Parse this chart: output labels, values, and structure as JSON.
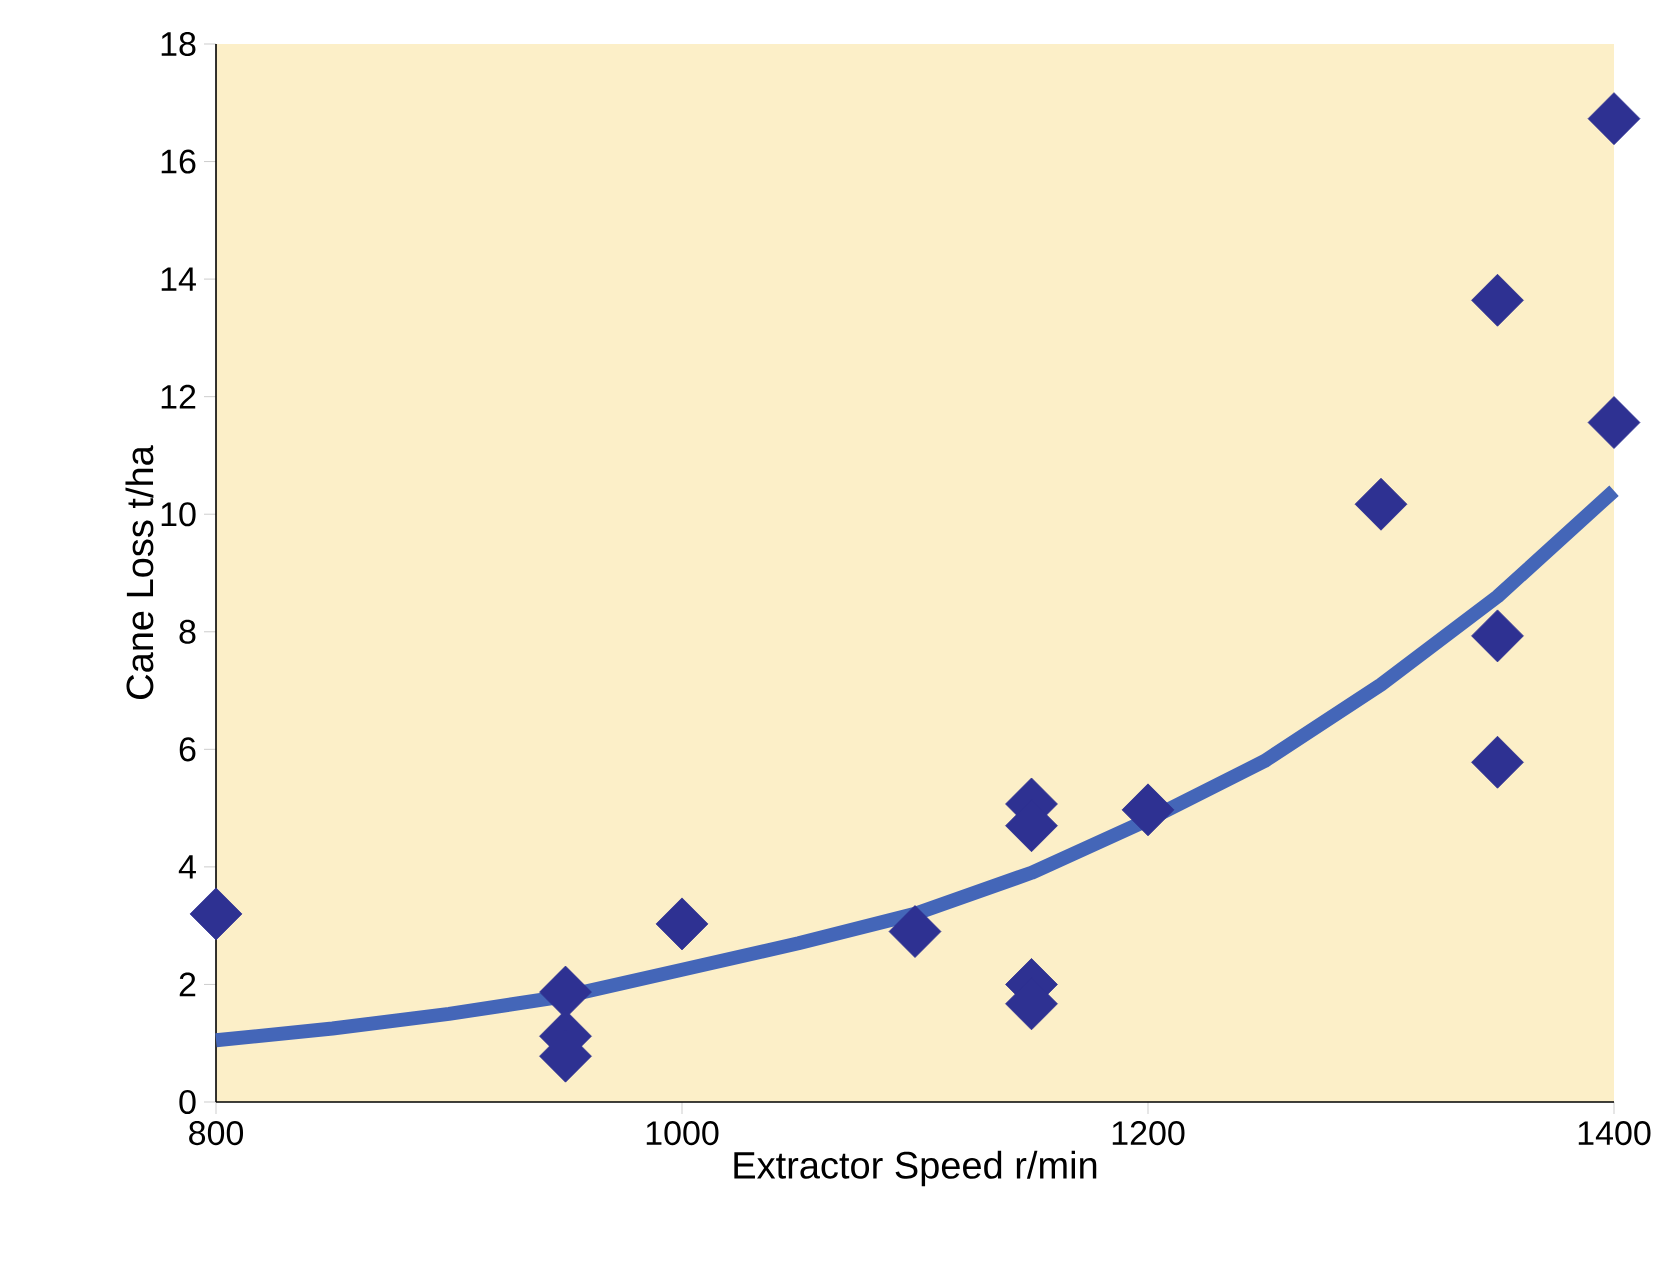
{
  "chart_data": {
    "type": "scatter",
    "xlabel": "Extractor Speed r/min",
    "ylabel": "Cane Loss t/ha",
    "xlim": [
      800,
      1400
    ],
    "xticks": [
      800,
      1000,
      1200,
      1400
    ],
    "ylim": [
      0,
      18
    ],
    "yticks": [
      0,
      2,
      4,
      6,
      8,
      10,
      12,
      14,
      16,
      18
    ],
    "grid": false,
    "series": [
      {
        "marker": "diamond",
        "color": "#2e3192",
        "x": [
          800,
          950,
          950,
          950,
          1000,
          1100,
          1150,
          1150,
          1150,
          1150,
          1200,
          1300,
          1350,
          1350,
          1350,
          1400,
          1400
        ],
        "values": [
          3.2,
          1.87,
          1.12,
          0.78,
          3.03,
          2.9,
          5.07,
          4.7,
          2.0,
          1.67,
          4.97,
          10.17,
          13.64,
          7.93,
          5.78,
          16.73,
          11.56
        ]
      },
      {
        "type": "line",
        "marker": "none",
        "line_style": "solid",
        "color": "#4466b8",
        "x": [
          800,
          850,
          900,
          950,
          1000,
          1050,
          1100,
          1150,
          1200,
          1250,
          1300,
          1350,
          1400
        ],
        "values": [
          1.05,
          1.25,
          1.5,
          1.8,
          2.25,
          2.7,
          3.2,
          3.9,
          4.8,
          5.8,
          7.1,
          8.6,
          10.4
        ]
      }
    ]
  }
}
